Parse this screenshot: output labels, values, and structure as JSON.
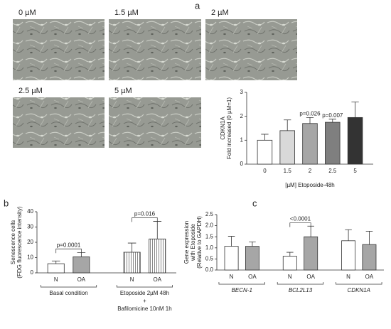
{
  "panel_labels": [
    "a",
    "b",
    "c"
  ],
  "micrographs": [
    "0 µM",
    "1.5 µM",
    "2 µM",
    "2.5 µM",
    "5 µM"
  ],
  "chart_data": [
    {
      "type": "bar",
      "ylabel": [
        "CDKN1A",
        "Fold increased (0 µM=1)"
      ],
      "xlabel": "[µM] Etoposide-48h",
      "categories": [
        "0",
        "1.5",
        "2",
        "2.5",
        "5"
      ],
      "values": [
        1,
        1.4,
        1.7,
        1.75,
        1.95
      ],
      "errors": [
        0.25,
        0.45,
        0.25,
        0.13,
        0.65
      ],
      "colors": [
        "#ffffff",
        "#d9d9d9",
        "#a6a6a6",
        "#7f7f7f",
        "#333333"
      ],
      "annotations": [
        null,
        null,
        "p=0.026",
        "p=0.007",
        null
      ],
      "ylim": [
        0,
        3
      ],
      "yticks": [
        0,
        1,
        2,
        3
      ]
    },
    {
      "type": "bar",
      "ylabel": [
        "Senescence cells",
        "(FDG fluorescence intensity)"
      ],
      "categories": [
        "N",
        "OA",
        "N",
        "OA"
      ],
      "values": [
        6,
        10.5,
        13.5,
        22.2
      ],
      "errors": [
        1.8,
        2.8,
        6,
        11.5
      ],
      "colors": [
        "#ffffff",
        "#a6a6a6",
        "#ffffff",
        "#a6a6a6"
      ],
      "patterns": [
        "solid",
        "solid",
        "vertical-lines",
        "vertical-lines"
      ],
      "annotations": [
        null,
        "p=0.0001",
        null,
        "p=0.016"
      ],
      "groups": [
        [
          "Basal condition"
        ],
        [
          "Etoposide 2µM 48h",
          "+",
          "Bafilomicine 10nM 1h"
        ]
      ],
      "ylim": [
        0,
        40
      ],
      "yticks": [
        0,
        10,
        20,
        30,
        40
      ]
    },
    {
      "type": "bar",
      "ylabel": [
        "Gene expression",
        "with Etoposide",
        "(Relative to GAPDH)"
      ],
      "categories": [
        "N",
        "OA",
        "N",
        "OA",
        "N",
        "OA"
      ],
      "values": [
        1.07,
        1.07,
        0.62,
        1.5,
        1.32,
        1.15
      ],
      "errors": [
        0.45,
        0.2,
        0.18,
        0.48,
        0.5,
        0.6
      ],
      "colors": [
        "#ffffff",
        "#a6a6a6",
        "#ffffff",
        "#a6a6a6",
        "#ffffff",
        "#a6a6a6"
      ],
      "annotations": [
        null,
        null,
        null,
        "<0.0001",
        null,
        null
      ],
      "groups": [
        [
          "BECN-1"
        ],
        [
          "BCL2L13"
        ],
        [
          "CDKN1A"
        ]
      ],
      "group_label_style": "italic",
      "ylim": [
        0,
        2.5
      ],
      "yticks": [
        {
          "value": 0,
          "label": "0.0"
        },
        {
          "value": 0.5,
          "label": "0.5"
        },
        {
          "value": 1,
          "label": "1.0"
        },
        {
          "value": 1.5,
          "label": "1.5"
        },
        {
          "value": 2,
          "label": "2.0"
        },
        {
          "value": 2.5,
          "label": "2.5"
        }
      ]
    }
  ]
}
